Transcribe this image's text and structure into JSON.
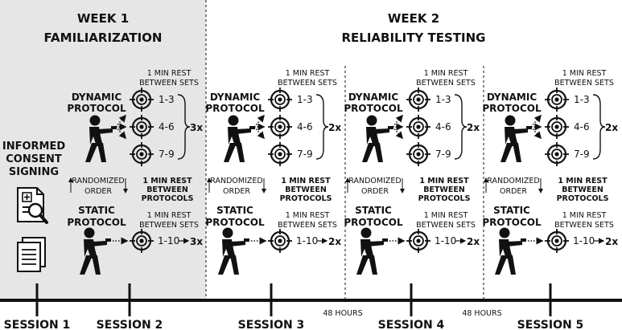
{
  "week1": {
    "title": "WEEK 1",
    "subtitle": "FAMILIARIZATION"
  },
  "week2": {
    "title": "WEEK 2",
    "subtitle": "RELIABILITY TESTING"
  },
  "consent": [
    "INFORMED",
    "CONSENT",
    "SIGNING"
  ],
  "dynamic_label": [
    "DYNAMIC",
    "PROTOCOL"
  ],
  "static_label": [
    "STATIC",
    "PROTOCOL"
  ],
  "rest_sets": [
    "1 MIN REST",
    "BETWEEN SETS"
  ],
  "rest_protocols": [
    "1 MIN REST",
    "BETWEEN",
    "PROTOCOLS"
  ],
  "randomized": [
    "RANDOMIZED",
    "ORDER"
  ],
  "target_sets": [
    "1-3",
    "4-6",
    "7-9"
  ],
  "static_set": "1-10",
  "blocks": [
    {
      "dyn_reps": "3x",
      "static_reps": "3x"
    },
    {
      "dyn_reps": "2x",
      "static_reps": "2x"
    },
    {
      "dyn_reps": "2x",
      "static_reps": "2x"
    },
    {
      "dyn_reps": "2x",
      "static_reps": "2x"
    }
  ],
  "sessions": [
    "SESSION 1",
    "SESSION 2",
    "SESSION 3",
    "SESSION 4",
    "SESSION 5"
  ],
  "gaps": [
    "48 HOURS",
    "48 HOURS"
  ],
  "colors": {
    "week1_bg": "#e6e6e6",
    "ink": "#111111"
  }
}
